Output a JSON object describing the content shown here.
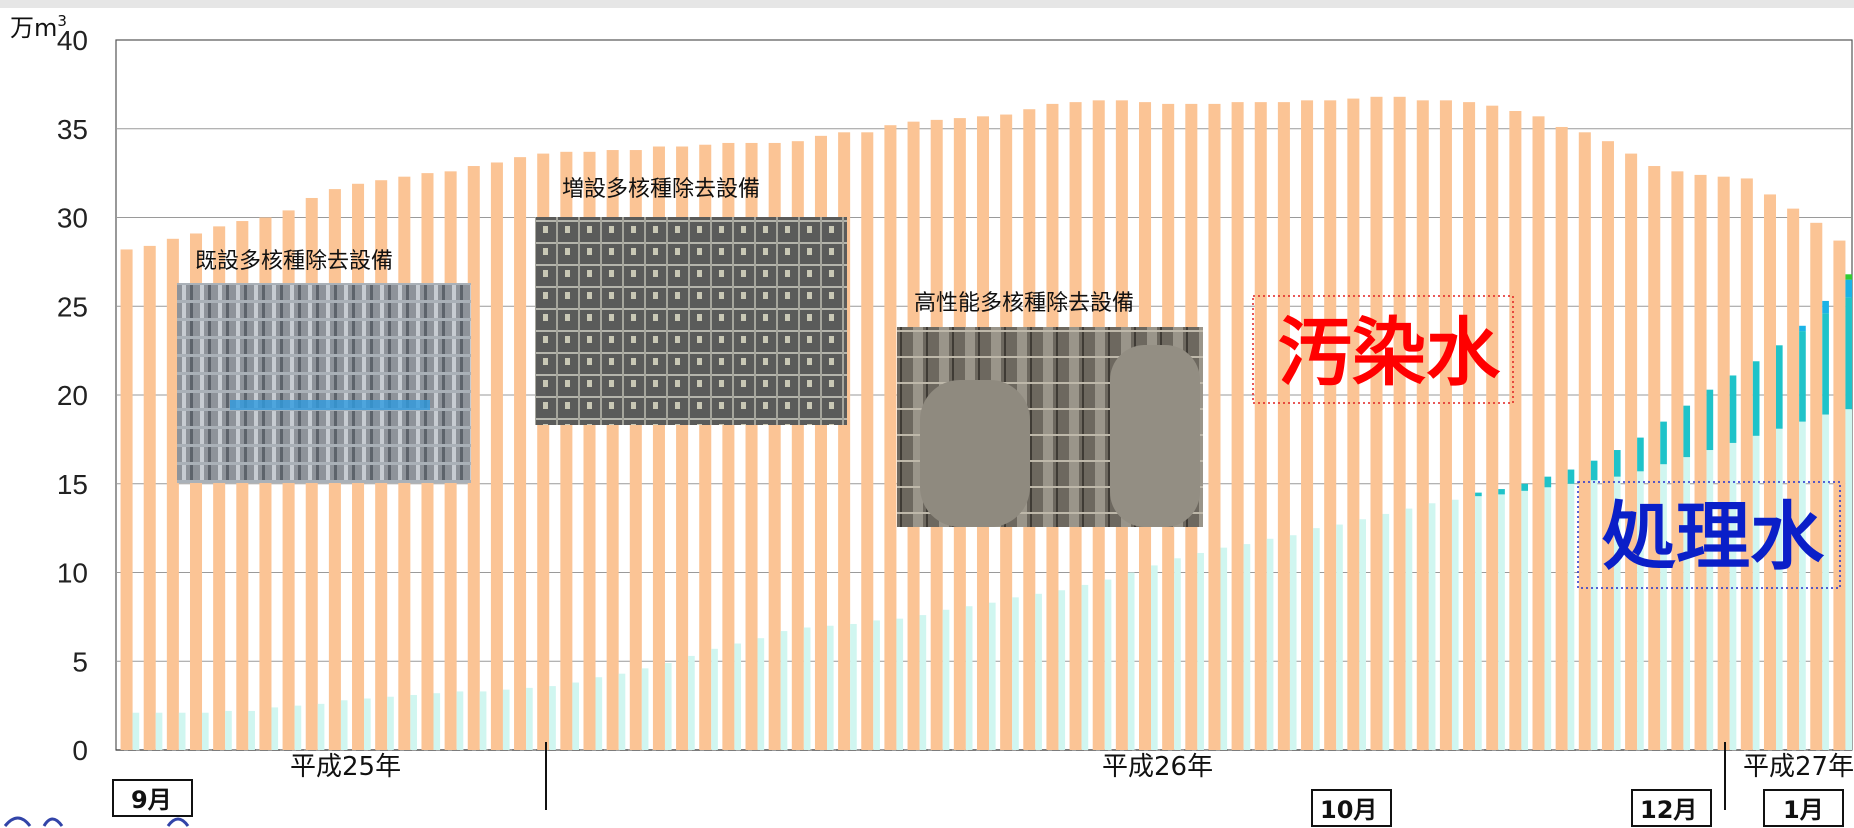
{
  "chart_data": {
    "type": "bar",
    "y_unit_label": "万m",
    "y_unit_sup": "3",
    "ylim": [
      0,
      40
    ],
    "y_ticks": [
      "0",
      "5",
      "10",
      "15",
      "20",
      "25",
      "30",
      "35",
      "40"
    ],
    "grid": true,
    "series": [
      {
        "name": "汚染水",
        "color": "#fbc495",
        "values": [
          28.2,
          28.4,
          28.8,
          29.1,
          29.5,
          29.8,
          30.0,
          30.4,
          31.1,
          31.6,
          31.9,
          32.1,
          32.3,
          32.5,
          32.6,
          32.9,
          33.1,
          33.4,
          33.6,
          33.7,
          33.7,
          33.8,
          33.8,
          34.0,
          34.0,
          34.1,
          34.2,
          34.2,
          34.2,
          34.3,
          34.6,
          34.8,
          34.8,
          35.2,
          35.4,
          35.5,
          35.6,
          35.7,
          35.8,
          36.1,
          36.4,
          36.5,
          36.6,
          36.6,
          36.5,
          36.4,
          36.4,
          36.4,
          36.5,
          36.5,
          36.5,
          36.6,
          36.6,
          36.7,
          36.8,
          36.8,
          36.6,
          36.6,
          36.5,
          36.3,
          36.0,
          35.7,
          35.1,
          34.8,
          34.3,
          33.6,
          32.9,
          32.6,
          32.4,
          32.3,
          32.2,
          31.3,
          30.5,
          29.7,
          28.7
        ]
      },
      {
        "name": "処理水",
        "color": "#d0f6f0",
        "values": [
          2.1,
          2.1,
          2.1,
          2.1,
          2.2,
          2.2,
          2.4,
          2.5,
          2.6,
          2.8,
          2.9,
          3.0,
          3.1,
          3.2,
          3.3,
          3.3,
          3.4,
          3.5,
          3.6,
          3.8,
          4.1,
          4.3,
          4.6,
          4.9,
          5.3,
          5.7,
          6.0,
          6.3,
          6.7,
          6.9,
          7.0,
          7.1,
          7.3,
          7.4,
          7.6,
          7.9,
          8.1,
          8.3,
          8.6,
          8.8,
          9.0,
          9.3,
          9.6,
          10.0,
          10.4,
          10.8,
          11.1,
          11.4,
          11.6,
          11.9,
          12.1,
          12.5,
          12.7,
          13.0,
          13.3,
          13.6,
          13.9,
          14.1,
          14.3,
          14.4,
          14.6,
          14.8,
          15.0,
          15.2,
          15.4,
          15.7,
          16.1,
          16.5,
          16.9,
          17.3,
          17.7,
          18.1,
          18.5,
          18.9,
          19.2
        ]
      },
      {
        "name": "",
        "color": "#1fc3c9",
        "values": [
          0,
          0,
          0,
          0,
          0,
          0,
          0,
          0,
          0,
          0,
          0,
          0,
          0,
          0,
          0,
          0,
          0,
          0,
          0,
          0,
          0,
          0,
          0,
          0,
          0,
          0,
          0,
          0,
          0,
          0,
          0,
          0,
          0,
          0,
          0,
          0,
          0,
          0,
          0,
          0,
          0,
          0,
          0,
          0,
          0,
          0,
          0,
          0,
          0,
          0,
          0,
          0,
          0,
          0,
          0,
          0,
          0,
          0,
          0.2,
          0.3,
          0.4,
          0.6,
          0.8,
          1.1,
          1.5,
          1.9,
          2.4,
          2.9,
          3.4,
          3.8,
          4.2,
          4.7,
          5.1,
          5.7,
          6.3
        ]
      },
      {
        "name": "",
        "color": "#1bb3e6",
        "values": [
          0,
          0,
          0,
          0,
          0,
          0,
          0,
          0,
          0,
          0,
          0,
          0,
          0,
          0,
          0,
          0,
          0,
          0,
          0,
          0,
          0,
          0,
          0,
          0,
          0,
          0,
          0,
          0,
          0,
          0,
          0,
          0,
          0,
          0,
          0,
          0,
          0,
          0,
          0,
          0,
          0,
          0,
          0,
          0,
          0,
          0,
          0,
          0,
          0,
          0,
          0,
          0,
          0,
          0,
          0,
          0,
          0,
          0,
          0,
          0,
          0,
          0,
          0,
          0,
          0,
          0,
          0,
          0,
          0,
          0,
          0,
          0,
          0.3,
          0.7,
          1.0,
          1.3
        ]
      },
      {
        "name": "",
        "color": "#33cc33",
        "values": [
          0,
          0,
          0,
          0,
          0,
          0,
          0,
          0,
          0,
          0,
          0,
          0,
          0,
          0,
          0,
          0,
          0,
          0,
          0,
          0,
          0,
          0,
          0,
          0,
          0,
          0,
          0,
          0,
          0,
          0,
          0,
          0,
          0,
          0,
          0,
          0,
          0,
          0,
          0,
          0,
          0,
          0,
          0,
          0,
          0,
          0,
          0,
          0,
          0,
          0,
          0,
          0,
          0,
          0,
          0,
          0,
          0,
          0,
          0,
          0,
          0,
          0,
          0,
          0,
          0,
          0,
          0,
          0,
          0,
          0,
          0,
          0,
          0,
          0,
          0.3
        ]
      }
    ],
    "era_labels": [
      "平成25年",
      "平成26年",
      "平成27年"
    ],
    "month_labels": [
      "9月",
      "10月",
      "12月",
      "1月"
    ],
    "annotations": {
      "contaminated": "汚染水",
      "treated": "処理水"
    }
  },
  "photos": [
    {
      "caption": "既設多核種除去設備",
      "icon": "facility-photo"
    },
    {
      "caption": "増設多核種除去設備",
      "icon": "facility-photo"
    },
    {
      "caption": "高性能多核種除去設備",
      "icon": "facility-photo"
    }
  ],
  "colors": {
    "contaminated_text": "#ff0000",
    "treated_text": "#0a1fc8",
    "grid": "#9a9a9a"
  }
}
